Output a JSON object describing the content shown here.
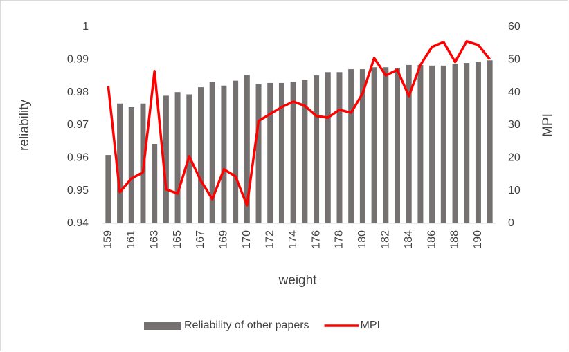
{
  "chart_data": {
    "type": "bar-line",
    "categories": [
      159,
      null,
      161,
      null,
      163,
      null,
      165,
      null,
      167,
      null,
      169,
      null,
      170,
      null,
      172,
      null,
      174,
      null,
      176,
      null,
      178,
      null,
      180,
      null,
      182,
      null,
      184,
      null,
      186,
      null,
      188,
      null,
      190,
      null
    ],
    "series": [
      {
        "name": "Reliability of other papers",
        "type": "bar",
        "color": "#767171",
        "axis": "y",
        "values": [
          0.9609,
          0.9766,
          0.9755,
          0.9766,
          0.9643,
          0.979,
          0.9801,
          0.9794,
          0.9816,
          0.9832,
          0.9821,
          0.9836,
          0.9853,
          0.9825,
          0.9829,
          0.9829,
          0.9832,
          0.9838,
          0.9852,
          0.9862,
          0.9862,
          0.9871,
          0.9871,
          0.9877,
          0.9877,
          0.9875,
          0.9884,
          0.9884,
          0.9882,
          0.9882,
          0.9888,
          0.989,
          0.9894,
          0.9898
        ]
      },
      {
        "name": "MPI",
        "type": "line",
        "color": "#ff0000",
        "axis": "y2",
        "values": [
          41.9,
          9.5,
          13.7,
          15.6,
          46.5,
          10.4,
          9.1,
          20.5,
          13.1,
          7.4,
          16.5,
          14.4,
          5.5,
          31.3,
          33.4,
          35.5,
          37.2,
          35.9,
          32.8,
          32.3,
          34.7,
          33.8,
          39.7,
          50.5,
          45.2,
          46.9,
          38.9,
          48.4,
          53.9,
          55.4,
          49.3,
          55.6,
          54.5,
          50.1
        ]
      }
    ],
    "xlabel": "weight",
    "ylabel": "reliability",
    "y2label": "MPI",
    "ylim": [
      0.94,
      1
    ],
    "yticks": [
      0.94,
      0.95,
      0.96,
      0.97,
      0.98,
      0.99,
      1
    ],
    "y2lim": [
      0,
      60
    ],
    "y2ticks": [
      0,
      10,
      20,
      30,
      40,
      50,
      60
    ],
    "grid": false,
    "legend": "bottom"
  }
}
